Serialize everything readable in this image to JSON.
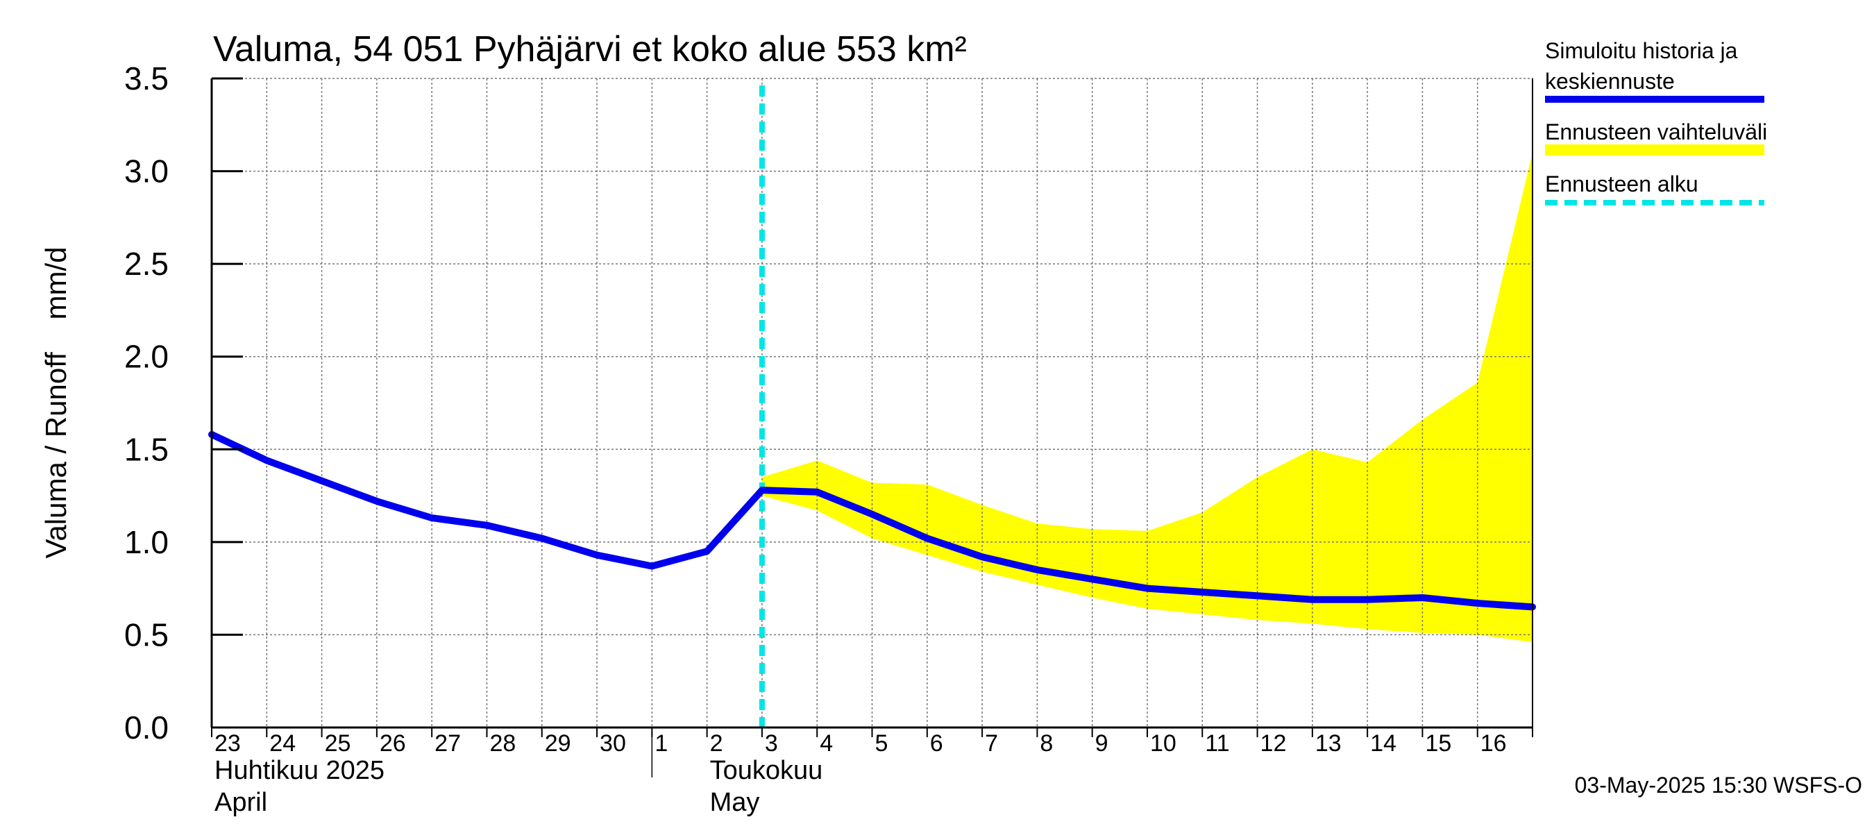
{
  "chart_data": {
    "type": "line",
    "title": "Valuma, 54 051 Pyhäjärvi et koko alue 553 km²",
    "ylabel": "Valuma / Runoff    mm/d",
    "ylim": [
      0,
      3.5
    ],
    "y_ticks": [
      0.0,
      0.5,
      1.0,
      1.5,
      2.0,
      2.5,
      3.0,
      3.5
    ],
    "y_tick_labels": [
      "0.0",
      "0.5",
      "1.0",
      "1.5",
      "2.0",
      "2.5",
      "3.0",
      "3.5"
    ],
    "x_range": [
      "2025-04-23",
      "2025-05-17"
    ],
    "x_day_labels": [
      "23",
      "24",
      "25",
      "26",
      "27",
      "28",
      "29",
      "30",
      "1",
      "2",
      "3",
      "4",
      "5",
      "6",
      "7",
      "8",
      "9",
      "10",
      "11",
      "12",
      "13",
      "14",
      "15",
      "16"
    ],
    "month_labels": [
      {
        "line1": "Huhtikuu  2025",
        "line2": "April"
      },
      {
        "line1": "Toukokuu",
        "line2": "May"
      }
    ],
    "grid": true,
    "legend_position": "right",
    "forecast_start": "2025-05-03",
    "series": [
      {
        "name": "Simuloitu historia ja keskiennuste",
        "color": "#0000ee",
        "points": [
          [
            "2025-04-23",
            1.58
          ],
          [
            "2025-04-24",
            1.44
          ],
          [
            "2025-04-25",
            1.33
          ],
          [
            "2025-04-26",
            1.22
          ],
          [
            "2025-04-27",
            1.13
          ],
          [
            "2025-04-28",
            1.09
          ],
          [
            "2025-04-29",
            1.02
          ],
          [
            "2025-04-30",
            0.93
          ],
          [
            "2025-05-01",
            0.87
          ],
          [
            "2025-05-02",
            0.95
          ],
          [
            "2025-05-03",
            1.28
          ],
          [
            "2025-05-04",
            1.27
          ],
          [
            "2025-05-05",
            1.15
          ],
          [
            "2025-05-06",
            1.02
          ],
          [
            "2025-05-07",
            0.92
          ],
          [
            "2025-05-08",
            0.85
          ],
          [
            "2025-05-09",
            0.8
          ],
          [
            "2025-05-10",
            0.75
          ],
          [
            "2025-05-11",
            0.73
          ],
          [
            "2025-05-12",
            0.71
          ],
          [
            "2025-05-13",
            0.69
          ],
          [
            "2025-05-14",
            0.69
          ],
          [
            "2025-05-15",
            0.7
          ],
          [
            "2025-05-16",
            0.67
          ],
          [
            "2025-05-17",
            0.65
          ]
        ]
      },
      {
        "name": "Ennusteen vaihteluväli",
        "color": "#ffff00",
        "band": [
          [
            "2025-05-03",
            1.25,
            1.35
          ],
          [
            "2025-05-04",
            1.17,
            1.44
          ],
          [
            "2025-05-05",
            1.02,
            1.32
          ],
          [
            "2025-05-06",
            0.93,
            1.31
          ],
          [
            "2025-05-07",
            0.84,
            1.2
          ],
          [
            "2025-05-08",
            0.77,
            1.1
          ],
          [
            "2025-05-09",
            0.7,
            1.07
          ],
          [
            "2025-05-10",
            0.64,
            1.06
          ],
          [
            "2025-05-11",
            0.61,
            1.16
          ],
          [
            "2025-05-12",
            0.58,
            1.35
          ],
          [
            "2025-05-13",
            0.56,
            1.5
          ],
          [
            "2025-05-14",
            0.53,
            1.43
          ],
          [
            "2025-05-15",
            0.51,
            1.66
          ],
          [
            "2025-05-16",
            0.5,
            1.86
          ],
          [
            "2025-05-17",
            0.46,
            3.1
          ]
        ]
      },
      {
        "name": "Ennusteen alku",
        "color": "#00e5e5"
      }
    ]
  },
  "timestamp": "03-May-2025 15:30 WSFS-O"
}
